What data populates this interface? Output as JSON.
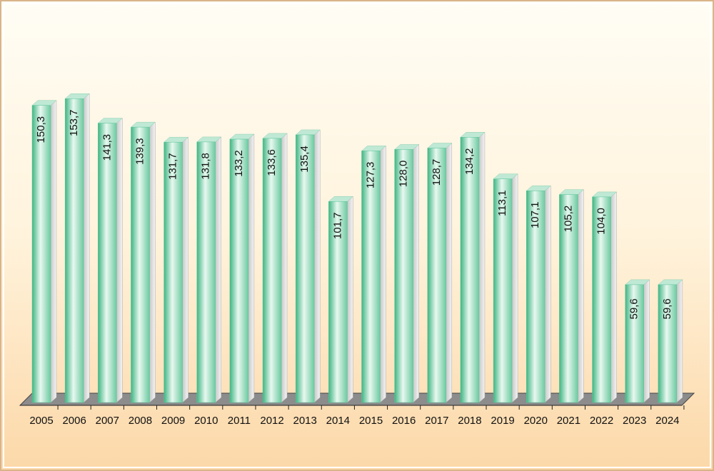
{
  "chart_data": {
    "type": "bar",
    "categories": [
      "2005",
      "2006",
      "2007",
      "2008",
      "2009",
      "2010",
      "2011",
      "2012",
      "2013",
      "2014",
      "2015",
      "2016",
      "2017",
      "2018",
      "2019",
      "2020",
      "2021",
      "2022",
      "2023",
      "2024"
    ],
    "values": [
      150.3,
      153.7,
      141.3,
      139.3,
      131.7,
      131.8,
      133.2,
      133.6,
      135.4,
      101.7,
      127.3,
      128.0,
      128.7,
      134.2,
      113.1,
      107.1,
      105.2,
      104.0,
      59.6,
      59.6
    ],
    "value_labels": [
      "150,3",
      "153,7",
      "141,3",
      "139,3",
      "131,7",
      "131,8",
      "133,2",
      "133,6",
      "135,4",
      "101,7",
      "127,3",
      "128,0",
      "128,7",
      "134,2",
      "113,1",
      "107,1",
      "105,2",
      "104,0",
      "59,6",
      "59,6"
    ],
    "color": "#5cc69a"
  }
}
